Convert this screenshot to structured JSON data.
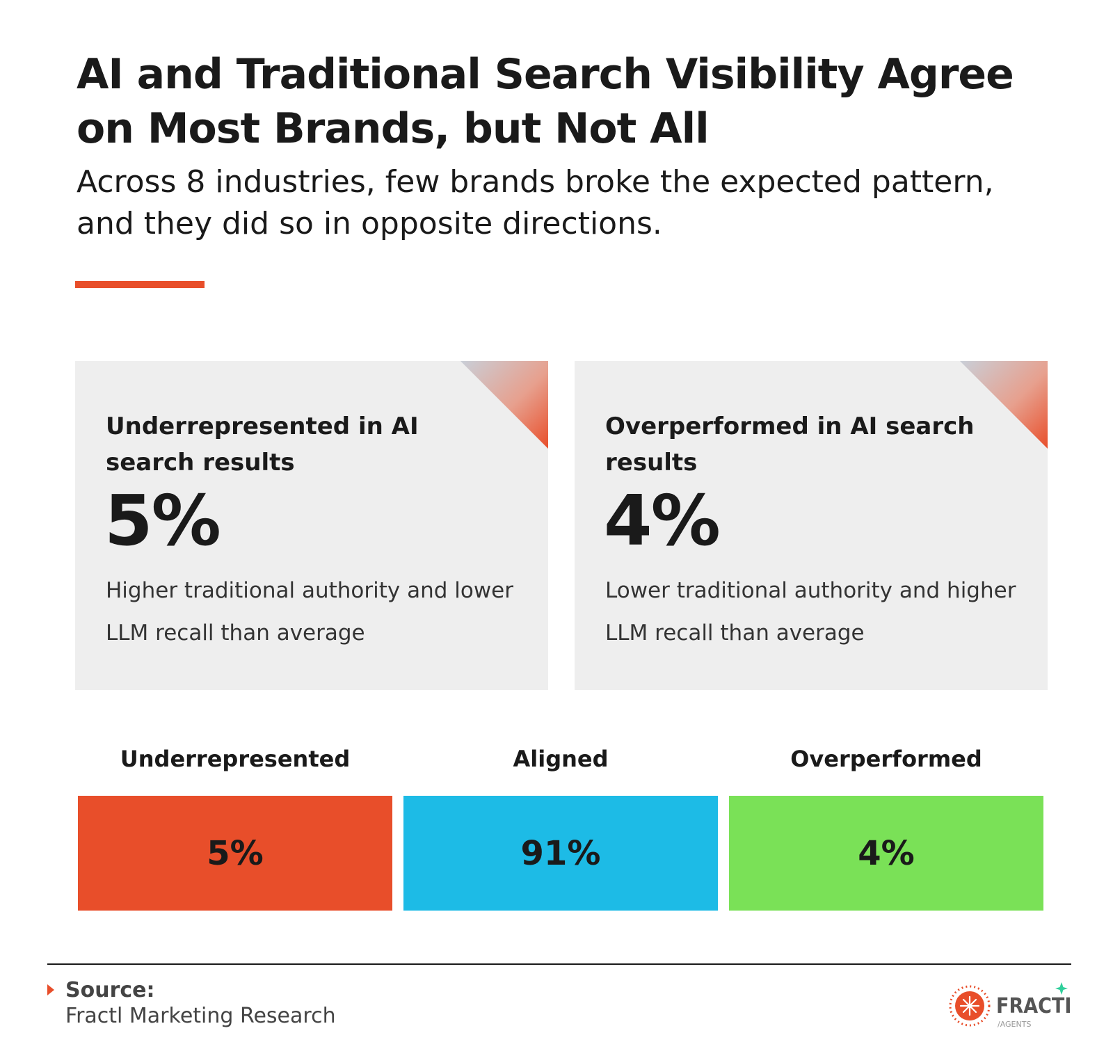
{
  "title": "AI and Traditional Search Visibility Agree on Most Brands, but Not All",
  "subtitle": "Across 8 industries, few brands broke the expected pattern, and they did so in opposite directions.",
  "colors": {
    "accent": "#e84e2a",
    "card_background": "#eeeeee",
    "text": "#1a1a1a"
  },
  "cards": [
    {
      "heading": "Underrepresented in AI search results",
      "value": "5%",
      "description": "Higher traditional authority and lower LLM recall than average"
    },
    {
      "heading": "Overperformed in AI search results",
      "value": "4%",
      "description": "Lower traditional authority and higher LLM recall than average"
    }
  ],
  "chart_data": {
    "type": "bar",
    "orientation": "horizontal-stacked",
    "unit": "%",
    "categories": [
      "Underrepresented",
      "Aligned",
      "Overperformed"
    ],
    "values": [
      5,
      91,
      4
    ],
    "value_labels": [
      "5%",
      "91%",
      "4%"
    ],
    "colors": [
      "#e84e2a",
      "#1dbbe6",
      "#7ae157"
    ],
    "title": "",
    "xlabel": "",
    "ylabel": ""
  },
  "source": {
    "label": "Source:",
    "text": "Fractl Marketing Research"
  },
  "logo": {
    "name": "FRACTL",
    "tagline": "/AGENTS",
    "icon": "snowflake-sun-icon",
    "sparkle_icon": "sparkle-icon",
    "sparkle_color": "#2fcf9b"
  }
}
